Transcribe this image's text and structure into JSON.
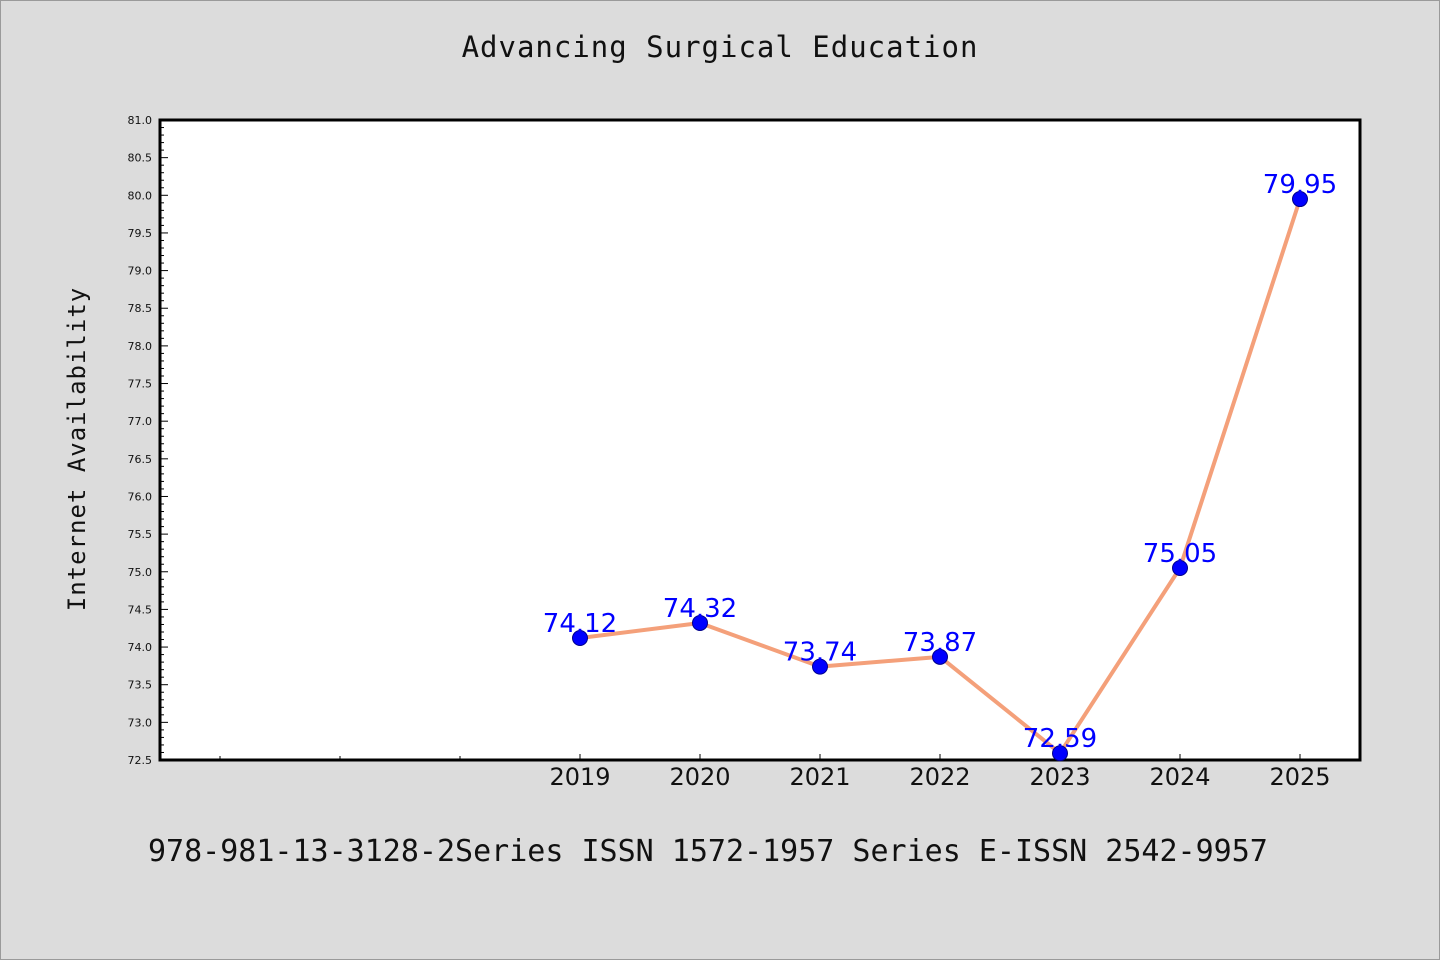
{
  "chart_data": {
    "type": "line",
    "title": "Advancing Surgical Education",
    "xlabel": "",
    "ylabel": "Internet Availability",
    "categories": [
      "2019",
      "2020",
      "2021",
      "2022",
      "2023",
      "2024",
      "2025"
    ],
    "x_axis_minor_ticks_before_first_category": 3,
    "series": [
      {
        "values": [
          74.12,
          74.32,
          73.74,
          73.87,
          72.59,
          75.05,
          79.95
        ],
        "labels": [
          "74.12",
          "74.32",
          "73.74",
          "73.87",
          "72.59",
          "75.05",
          "79.95"
        ],
        "line_color": "#f4a07a",
        "marker_color": "#0000ff"
      }
    ],
    "ylim": [
      72.5,
      81.0
    ],
    "ytick_step": 0.5,
    "grid": false,
    "legend": "none"
  },
  "footer": {
    "text": "978-981-13-3128-2Series ISSN 1572-1957 Series E-ISSN 2542-9957"
  },
  "colors": {
    "background": "#dcdcdc",
    "plot_background": "#ffffff",
    "line": "#f4a07a",
    "marker": "#0000ff",
    "data_label": "#0000ff"
  }
}
